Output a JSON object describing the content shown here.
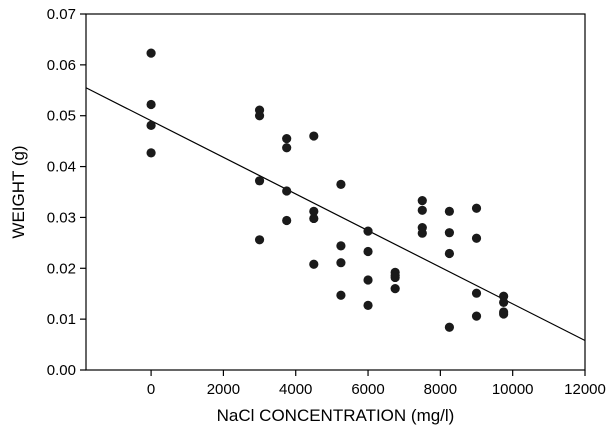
{
  "chart_data": {
    "type": "scatter",
    "title": "",
    "xlabel": "NaCl CONCENTRATION (mg/l)",
    "ylabel": "WEIGHT (g)",
    "xlim": [
      -1800,
      12000
    ],
    "ylim": [
      0,
      0.07
    ],
    "xticks": [
      0,
      2000,
      4000,
      6000,
      8000,
      10000,
      12000
    ],
    "yticks": [
      0.0,
      0.01,
      0.02,
      0.03,
      0.04,
      0.05,
      0.06,
      0.07
    ],
    "xtick_labels": [
      "0",
      "2000",
      "4000",
      "6000",
      "8000",
      "10000",
      "12000"
    ],
    "ytick_labels": [
      "0.00",
      "0.01",
      "0.02",
      "0.03",
      "0.04",
      "0.05",
      "0.06",
      "0.07"
    ],
    "grid": false,
    "legend": "none",
    "marker_color": "#1a1a1a",
    "series": [
      {
        "points": [
          [
            0,
            0.0623
          ],
          [
            0,
            0.0522
          ],
          [
            0,
            0.0481
          ],
          [
            0,
            0.0427
          ],
          [
            3000,
            0.0511
          ],
          [
            3000,
            0.05
          ],
          [
            3000,
            0.0372
          ],
          [
            3000,
            0.0256
          ],
          [
            3750,
            0.0455
          ],
          [
            3750,
            0.0437
          ],
          [
            3750,
            0.0352
          ],
          [
            3750,
            0.0294
          ],
          [
            4500,
            0.046
          ],
          [
            4500,
            0.0312
          ],
          [
            4500,
            0.0298
          ],
          [
            4500,
            0.0208
          ],
          [
            5250,
            0.0365
          ],
          [
            5250,
            0.0244
          ],
          [
            5250,
            0.0211
          ],
          [
            5250,
            0.0147
          ],
          [
            6000,
            0.0273
          ],
          [
            6000,
            0.0233
          ],
          [
            6000,
            0.0177
          ],
          [
            6000,
            0.0127
          ],
          [
            6750,
            0.0192
          ],
          [
            6750,
            0.0186
          ],
          [
            6750,
            0.0182
          ],
          [
            6750,
            0.016
          ],
          [
            7500,
            0.0333
          ],
          [
            7500,
            0.0314
          ],
          [
            7500,
            0.028
          ],
          [
            7500,
            0.0269
          ],
          [
            8250,
            0.0312
          ],
          [
            8250,
            0.027
          ],
          [
            8250,
            0.0229
          ],
          [
            8250,
            0.0084
          ],
          [
            9000,
            0.0318
          ],
          [
            9000,
            0.0259
          ],
          [
            9000,
            0.0151
          ],
          [
            9000,
            0.0106
          ],
          [
            9750,
            0.0145
          ],
          [
            9750,
            0.0133
          ],
          [
            9750,
            0.0114
          ],
          [
            9750,
            0.011
          ]
        ]
      }
    ],
    "trendline": {
      "type": "linear",
      "x": [
        -1800,
        12000
      ],
      "y": [
        0.0555,
        0.0058
      ]
    }
  }
}
